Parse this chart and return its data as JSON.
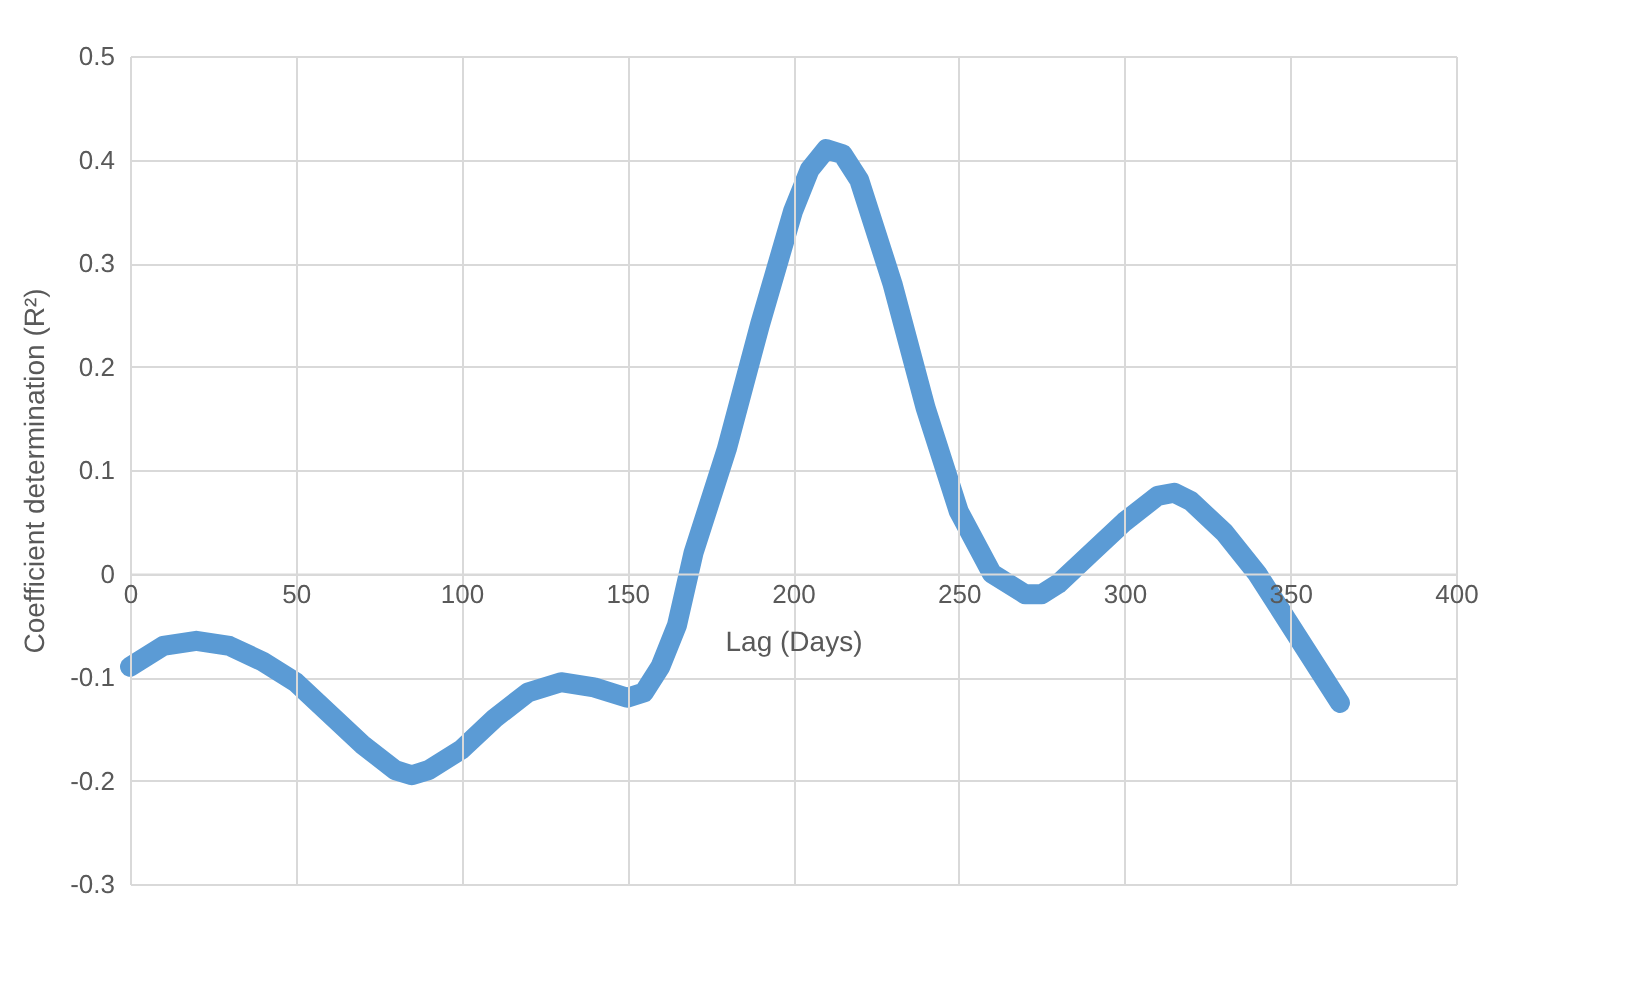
{
  "chart_data": {
    "type": "line",
    "xlabel": "Lag (Days)",
    "ylabel": "Coefficient determination (R²)",
    "xlim": [
      0,
      400
    ],
    "xticks": [
      0,
      50,
      100,
      150,
      200,
      250,
      300,
      350,
      400
    ],
    "ylim": [
      -0.3,
      0.5
    ],
    "yticks": [
      -0.3,
      -0.2,
      -0.1,
      0,
      0.1,
      0.2,
      0.3,
      0.4,
      0.5
    ],
    "grid": true,
    "line_style": "solid",
    "series": [
      {
        "color": "#5b9bd5",
        "x": [
          0,
          10,
          20,
          30,
          40,
          50,
          60,
          70,
          80,
          85,
          90,
          100,
          110,
          120,
          130,
          140,
          150,
          155,
          160,
          165,
          170,
          180,
          190,
          200,
          205,
          210,
          215,
          220,
          230,
          240,
          250,
          260,
          270,
          275,
          280,
          290,
          300,
          310,
          315,
          320,
          330,
          340,
          350,
          360,
          365
        ],
        "values": [
          -0.09,
          -0.07,
          -0.065,
          -0.07,
          -0.085,
          -0.105,
          -0.135,
          -0.165,
          -0.19,
          -0.195,
          -0.19,
          -0.17,
          -0.14,
          -0.115,
          -0.105,
          -0.11,
          -0.12,
          -0.115,
          -0.09,
          -0.05,
          0.02,
          0.12,
          0.24,
          0.35,
          0.39,
          0.41,
          0.405,
          0.38,
          0.28,
          0.16,
          0.06,
          0.0,
          -0.02,
          -0.02,
          -0.01,
          0.02,
          0.05,
          0.075,
          0.078,
          0.07,
          0.04,
          0.0,
          -0.05,
          -0.1,
          -0.125
        ]
      }
    ]
  }
}
